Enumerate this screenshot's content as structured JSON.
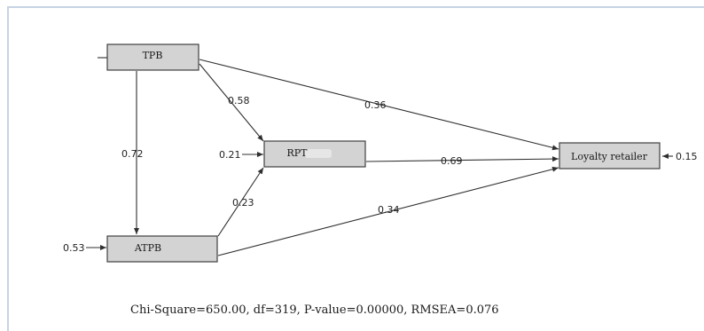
{
  "colors": {
    "frame_line": "#c7d3e3",
    "node_fill": "#d3d3d3",
    "node_stroke": "#3f3f3f",
    "edge": "#2f2f2f"
  },
  "nodes": {
    "tpb": "TPB",
    "rpt": "RPT",
    "atpb": "ATPB",
    "loyalty": "Loyalty retailer"
  },
  "paths": {
    "tpb_to_rpt": "0.58",
    "tpb_to_loyalty": "0.36",
    "tpb_to_atpb": "0.72",
    "atpb_to_rpt": "0.23",
    "atpb_to_loyalty": "0.34",
    "rpt_to_loyalty": "0.69"
  },
  "errors": {
    "rpt": "0.21",
    "atpb": "0.53",
    "loyalty": "0.15"
  },
  "fit_statistics": "Chi-Square=650.00, df=319, P-value=0.00000, RMSEA=0.076"
}
